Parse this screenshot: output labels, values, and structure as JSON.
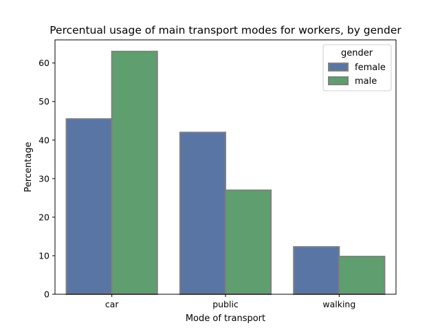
{
  "chart_data": {
    "type": "bar",
    "title": "Percentual usage of main transport modes for workers, by gender",
    "xlabel": "Mode of transport",
    "ylabel": "Percentage",
    "categories": [
      "car",
      "public",
      "walking"
    ],
    "series": [
      {
        "name": "female",
        "values": [
          45.5,
          42.0,
          12.3
        ],
        "color": "#5875a4"
      },
      {
        "name": "male",
        "values": [
          63.0,
          27.0,
          9.8
        ],
        "color": "#5f9e6e"
      }
    ],
    "ylim": [
      0,
      66
    ],
    "yticks": [
      0,
      10,
      20,
      30,
      40,
      50,
      60
    ],
    "grid": false,
    "legend": {
      "title": "gender",
      "position": "top-right"
    },
    "bar_edge_color": "#808080"
  }
}
